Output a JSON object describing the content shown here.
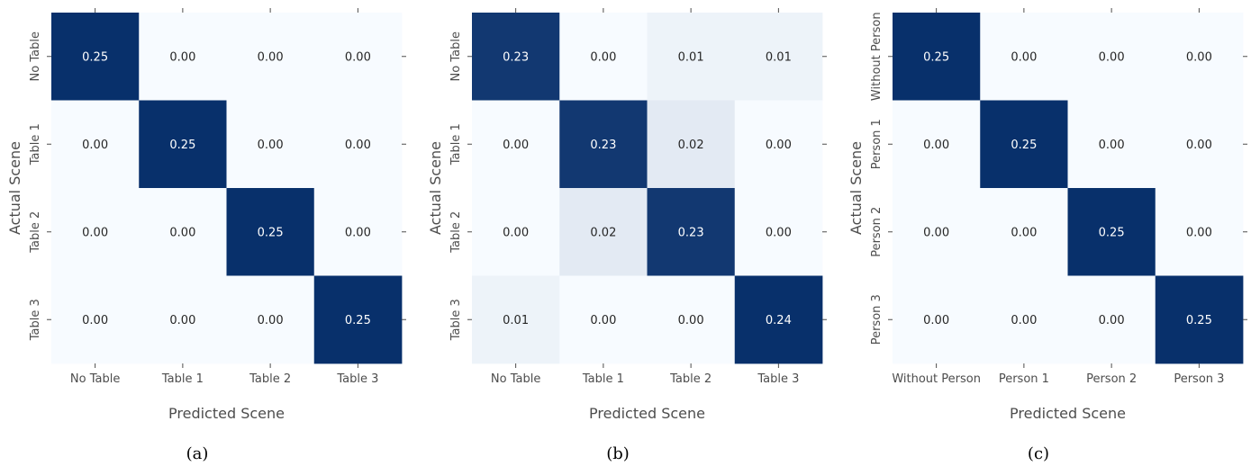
{
  "colors": {
    "low": "#f7fbff",
    "high": "#08306b",
    "text_on_dark": "#ffffff",
    "text_on_light": "#262626"
  },
  "chart_data": [
    {
      "type": "heatmap",
      "caption": "(a)",
      "xlabel": "Predicted Scene",
      "ylabel": "Actual Scene",
      "x_categories": [
        "No Table",
        "Table 1",
        "Table 2",
        "Table 3"
      ],
      "y_categories": [
        "No Table",
        "Table 1",
        "Table 2",
        "Table 3"
      ],
      "values": [
        [
          0.25,
          0.0,
          0.0,
          0.0
        ],
        [
          0.0,
          0.25,
          0.0,
          0.0
        ],
        [
          0.0,
          0.0,
          0.25,
          0.0
        ],
        [
          0.0,
          0.0,
          0.0,
          0.25
        ]
      ],
      "labels": [
        [
          "0.25",
          "0.00",
          "0.00",
          "0.00"
        ],
        [
          "0.00",
          "0.25",
          "0.00",
          "0.00"
        ],
        [
          "0.00",
          "0.00",
          "0.25",
          "0.00"
        ],
        [
          "0.00",
          "0.00",
          "0.00",
          "0.25"
        ]
      ],
      "colormap": "Blues",
      "vmin": 0,
      "vmax": 0.25
    },
    {
      "type": "heatmap",
      "caption": "(b)",
      "xlabel": "Predicted Scene",
      "ylabel": "Actual Scene",
      "x_categories": [
        "No Table",
        "Table 1",
        "Table 2",
        "Table 3"
      ],
      "y_categories": [
        "No Table",
        "Table 1",
        "Table 2",
        "Table 3"
      ],
      "values": [
        [
          0.23,
          0.0,
          0.01,
          0.01
        ],
        [
          0.0,
          0.23,
          0.02,
          0.0
        ],
        [
          0.0,
          0.02,
          0.23,
          0.0
        ],
        [
          0.01,
          0.0,
          0.0,
          0.24
        ]
      ],
      "labels": [
        [
          "0.23",
          "0.00",
          "0.01",
          "0.01"
        ],
        [
          "0.00",
          "0.23",
          "0.02",
          "0.00"
        ],
        [
          "0.00",
          "0.02",
          "0.23",
          "0.00"
        ],
        [
          "0.01",
          "0.00",
          "0.00",
          "0.24"
        ]
      ],
      "colormap": "Blues",
      "vmin": 0,
      "vmax": 0.24
    },
    {
      "type": "heatmap",
      "caption": "(c)",
      "xlabel": "Predicted Scene",
      "ylabel": "Actual Scene",
      "x_categories": [
        "Without Person",
        "Person 1",
        "Person 2",
        "Person 3"
      ],
      "y_categories": [
        "Without Person",
        "Person 1",
        "Person 2",
        "Person 3"
      ],
      "values": [
        [
          0.25,
          0.0,
          0.0,
          0.0
        ],
        [
          0.0,
          0.25,
          0.0,
          0.0
        ],
        [
          0.0,
          0.0,
          0.25,
          0.0
        ],
        [
          0.0,
          0.0,
          0.0,
          0.25
        ]
      ],
      "labels": [
        [
          "0.25",
          "0.00",
          "0.00",
          "0.00"
        ],
        [
          "0.00",
          "0.25",
          "0.00",
          "0.00"
        ],
        [
          "0.00",
          "0.00",
          "0.25",
          "0.00"
        ],
        [
          "0.00",
          "0.00",
          "0.00",
          "0.25"
        ]
      ],
      "colormap": "Blues",
      "vmin": 0,
      "vmax": 0.25
    }
  ]
}
